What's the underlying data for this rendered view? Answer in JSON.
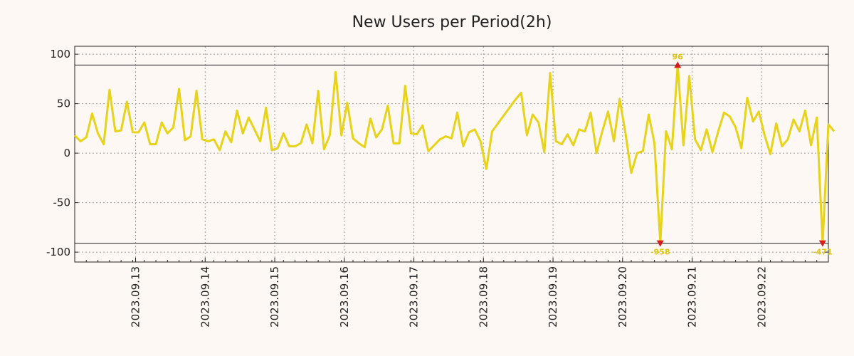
{
  "chart_data": {
    "type": "line",
    "title": "New Users per Period(2h)",
    "xlabel": "",
    "ylabel": "",
    "ylim": [
      -110,
      108
    ],
    "y_ticks": [
      100,
      50,
      0,
      -50,
      -100
    ],
    "y_tick_labels": [
      "100",
      "50",
      "0",
      "-50",
      "-100"
    ],
    "clip_limits": [
      89,
      -91
    ],
    "x_range": [
      0,
      130
    ],
    "x_tick_positions": [
      10.5,
      22.5,
      34.5,
      46.5,
      58.5,
      70.5,
      82.5,
      94.5,
      106.5,
      118.5
    ],
    "x_tick_labels": [
      "2023.09.13",
      "2023.09.14",
      "2023.09.15",
      "2023.09.16",
      "2023.09.17",
      "2023.09.18",
      "2023.09.19",
      "2023.09.20",
      "2023.09.21",
      "2023.09.22"
    ],
    "series": [
      {
        "name": "New Users",
        "color": "#e8d21a",
        "values": [
          18,
          12,
          16,
          40,
          20,
          9,
          64,
          22,
          23,
          52,
          21,
          21,
          31,
          9,
          9,
          31,
          20,
          26,
          65,
          13,
          17,
          63,
          14,
          12,
          14,
          3,
          22,
          11,
          43,
          20,
          36,
          24,
          12,
          46,
          3,
          5,
          20,
          7,
          7,
          10,
          29,
          10,
          63,
          4,
          18,
          82,
          18,
          51,
          15,
          10,
          6,
          35,
          16,
          24,
          48,
          10,
          10,
          68,
          20,
          19,
          28,
          2,
          8,
          14,
          17,
          15,
          41,
          7,
          21,
          24,
          12,
          -16,
          22,
          30,
          38,
          46,
          54,
          61,
          18,
          39,
          31,
          1,
          81,
          12,
          9,
          19,
          8,
          24,
          22,
          41,
          0,
          22,
          42,
          12,
          55,
          20,
          -20,
          0,
          2,
          39,
          10,
          -91,
          22,
          4,
          89,
          8,
          78,
          14,
          3,
          24,
          1,
          22,
          41,
          37,
          26,
          5,
          56,
          32,
          42,
          18,
          -1,
          30,
          7,
          14,
          34,
          22,
          43,
          8,
          36,
          -91,
          29,
          22
        ]
      }
    ],
    "annotations": [
      {
        "index": 101,
        "value": -91,
        "label": "-958",
        "marker": "down"
      },
      {
        "index": 104,
        "value": 89,
        "label": "96",
        "marker": "up"
      },
      {
        "index": 129,
        "value": -91,
        "label": "-471",
        "marker": "down"
      }
    ],
    "annotation_text_color": "#e2c60f",
    "marker_color": "#d81b1b"
  }
}
